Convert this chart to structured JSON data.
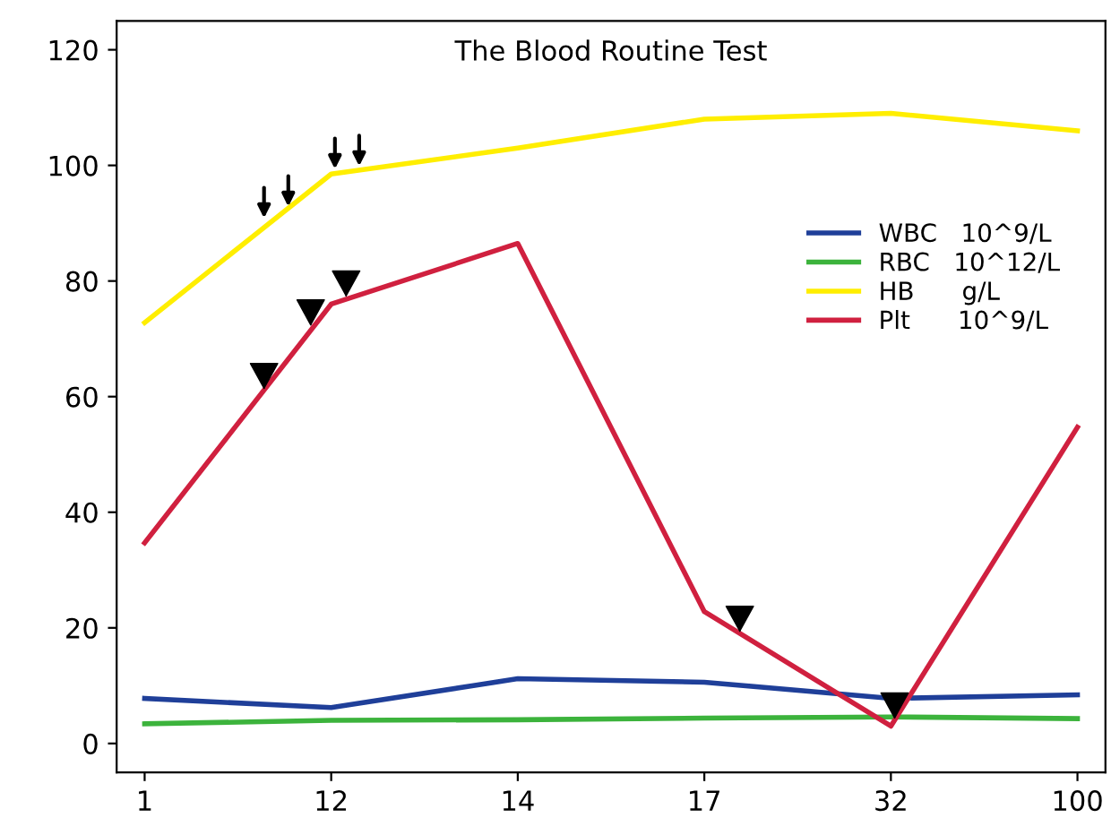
{
  "chart_data": {
    "type": "line",
    "title": "The Blood Routine Test",
    "categories": [
      "1",
      "12",
      "14",
      "17",
      "32",
      "100"
    ],
    "series": [
      {
        "name": "WBC   10^9/L",
        "color": "#1f3f99",
        "values": [
          7.8,
          6.2,
          11.2,
          10.6,
          7.8,
          8.4
        ]
      },
      {
        "name": "RBC   10^12/L",
        "color": "#3cb33c",
        "values": [
          3.4,
          4.0,
          4.1,
          4.4,
          4.6,
          4.3
        ]
      },
      {
        "name": "HB      g/L",
        "color": "#ffee00",
        "values": [
          72.8,
          98.5,
          103,
          108,
          109,
          106
        ]
      },
      {
        "name": "Plt      10^9/L",
        "color": "#d0203f",
        "values": [
          34.7,
          76,
          86.5,
          22.8,
          3,
          54.7
        ]
      }
    ],
    "ylim": [
      -5,
      125
    ],
    "yticks": [
      0,
      20,
      40,
      60,
      80,
      100,
      120
    ],
    "legend": "top right",
    "marker": "none",
    "line_style": "solid",
    "grid": false
  }
}
